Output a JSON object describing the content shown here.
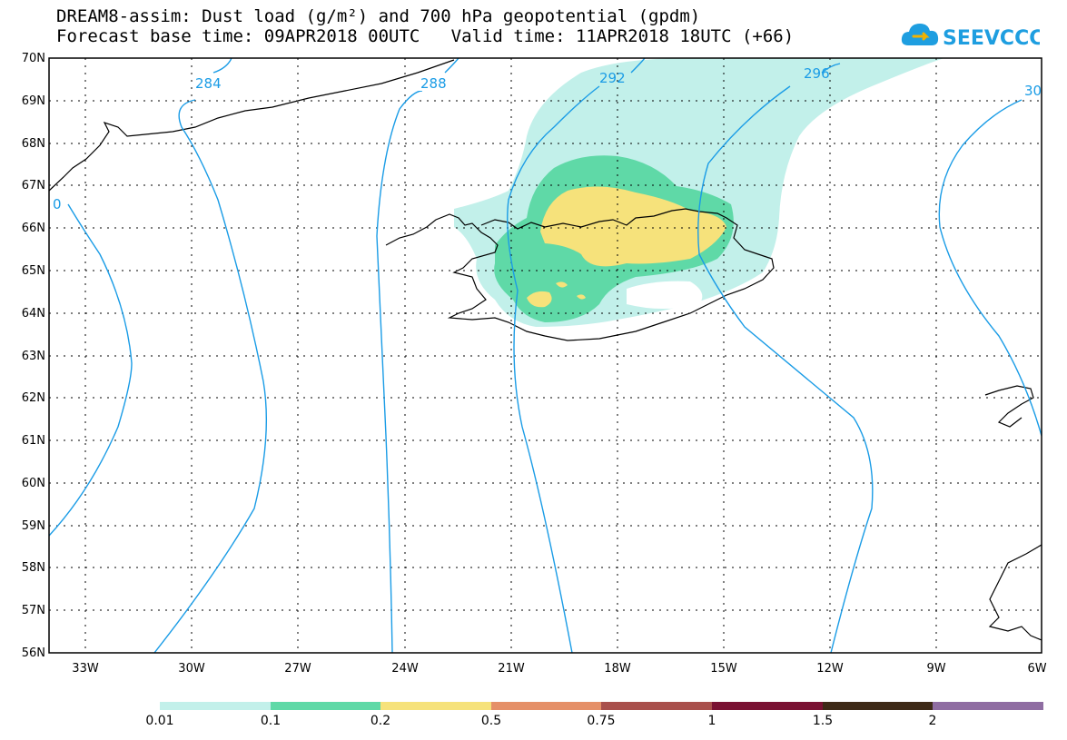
{
  "header": {
    "title_line1": "DREAM8-assim: Dust load (g/m²) and 700 hPa geopotential (gpdm)",
    "title_line2": "Forecast base time: 09APR2018 00UTC   Valid time: 11APR2018 18UTC (+66)"
  },
  "logo": {
    "text": "SEEVCCC",
    "icon": "cloud-icon",
    "color": "#1e9ee0"
  },
  "map": {
    "lat_labels": [
      "70N",
      "69N",
      "68N",
      "67N",
      "66N",
      "65N",
      "64N",
      "63N",
      "62N",
      "61N",
      "60N",
      "59N",
      "58N",
      "57N",
      "56N"
    ],
    "lon_labels": [
      "33W",
      "30W",
      "27W",
      "24W",
      "21W",
      "18W",
      "15W",
      "12W",
      "9W",
      "6W"
    ],
    "contour_labels": [
      "284",
      "288",
      "292",
      "296",
      "30",
      "0"
    ],
    "contour_color": "#1a9ce6"
  },
  "colorbar": {
    "labels": [
      "0.01",
      "0.1",
      "0.2",
      "0.5",
      "0.75",
      "1",
      "1.5",
      "2"
    ],
    "colors": [
      "#c2f0ea",
      "#5fd9a7",
      "#f6e27b",
      "#e59068",
      "#a9504c",
      "#7a1233",
      "#3e2a17",
      "#8f6da2"
    ]
  }
}
